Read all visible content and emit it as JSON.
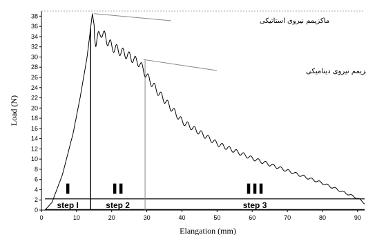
{
  "chart_data": {
    "type": "line",
    "xlabel": "Elangation (mm)",
    "ylabel": "Load (N)",
    "xlim": [
      0,
      92
    ],
    "ylim": [
      0,
      39
    ],
    "x_ticks": [
      "0",
      "10",
      "20",
      "30",
      "40",
      "50",
      "60",
      "70",
      "80",
      "90"
    ],
    "y_ticks": [
      "0",
      "2",
      "4",
      "6",
      "8",
      "10",
      "12",
      "14",
      "16",
      "18",
      "20",
      "22",
      "24",
      "26",
      "28",
      "30",
      "32",
      "34",
      "36",
      "38"
    ],
    "envelope": {
      "x": [
        1,
        3,
        6,
        9,
        11,
        13,
        14.5,
        15.5,
        17,
        20,
        25,
        28,
        30,
        33,
        40,
        50,
        60,
        70,
        80,
        90,
        92
      ],
      "y": [
        0,
        1.5,
        7,
        15,
        22,
        30,
        38.5,
        34,
        36,
        33,
        31,
        29.5,
        27,
        24,
        18,
        13.5,
        10.5,
        8,
        5.5,
        2.5,
        1.5
      ]
    },
    "annotations": [
      {
        "text": "ماکزیمم نیروی استاتیکی",
        "x": 15,
        "y": 38.5
      },
      {
        "text": "ماکزیمم نیروی دینامیکی",
        "x": 29,
        "y": 29.5
      }
    ],
    "steps": [
      {
        "label": "step I",
        "x_start": 1,
        "x_end": 14,
        "bars": 1
      },
      {
        "label": "step 2",
        "x_start": 14,
        "x_end": 29.5,
        "bars": 2
      },
      {
        "label": "step 3",
        "x_start": 29.5,
        "x_end": 92,
        "bars": 3
      }
    ],
    "step_band": [
      0,
      2.2
    ],
    "grid": "dashed-top-only",
    "legend": "none"
  }
}
